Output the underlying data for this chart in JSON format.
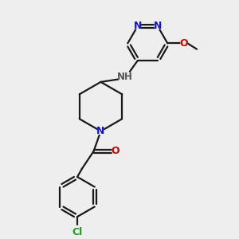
{
  "background_color": "#eeeeee",
  "bond_color": "#1a1a1a",
  "N_color": "#1414cc",
  "O_color": "#cc0000",
  "Cl_color": "#1a9c1a",
  "line_width": 1.6,
  "fig_size": [
    3.0,
    3.0
  ],
  "dpi": 100,
  "xlim": [
    0,
    10
  ],
  "ylim": [
    0,
    10
  ]
}
